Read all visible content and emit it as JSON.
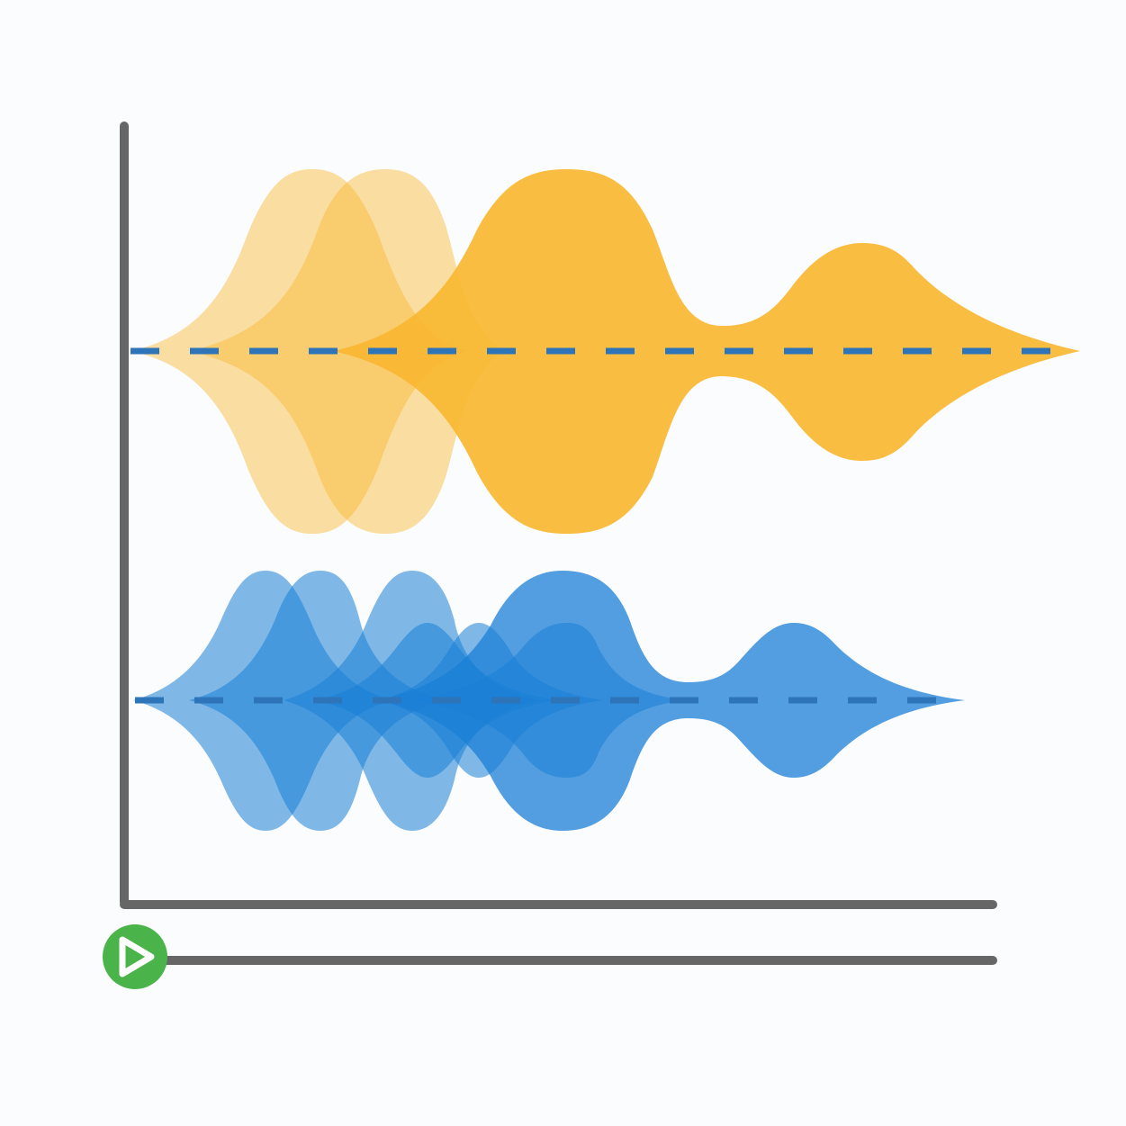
{
  "colors": {
    "background": "#fbfcfd",
    "axis": "#666666",
    "orange_series": "#f8b731",
    "blue_series": "#1a7fd6",
    "baseline_dash": "#2e74b8",
    "play_button": "#4ab44a",
    "play_icon": "#ffffff"
  },
  "icons": {
    "play": "play-icon"
  },
  "shapes": {
    "orange_group": {
      "fill": "#f8b731",
      "layers": [
        {
          "name": "orange-shape-1",
          "opacity": 0.45
        },
        {
          "name": "orange-shape-2",
          "opacity": 0.45
        },
        {
          "name": "orange-shape-3",
          "opacity": 0.92
        }
      ]
    },
    "blue_group": {
      "fill": "#1a7fd6",
      "layers": [
        {
          "name": "blue-shape-1",
          "opacity": 0.55
        },
        {
          "name": "blue-shape-2",
          "opacity": 0.55
        },
        {
          "name": "blue-shape-3",
          "opacity": 0.55
        },
        {
          "name": "blue-shape-4",
          "opacity": 0.55
        },
        {
          "name": "blue-shape-5",
          "opacity": 0.55
        },
        {
          "name": "blue-shape-6",
          "opacity": 0.55
        },
        {
          "name": "blue-shape-7",
          "opacity": 0.75
        }
      ]
    }
  }
}
